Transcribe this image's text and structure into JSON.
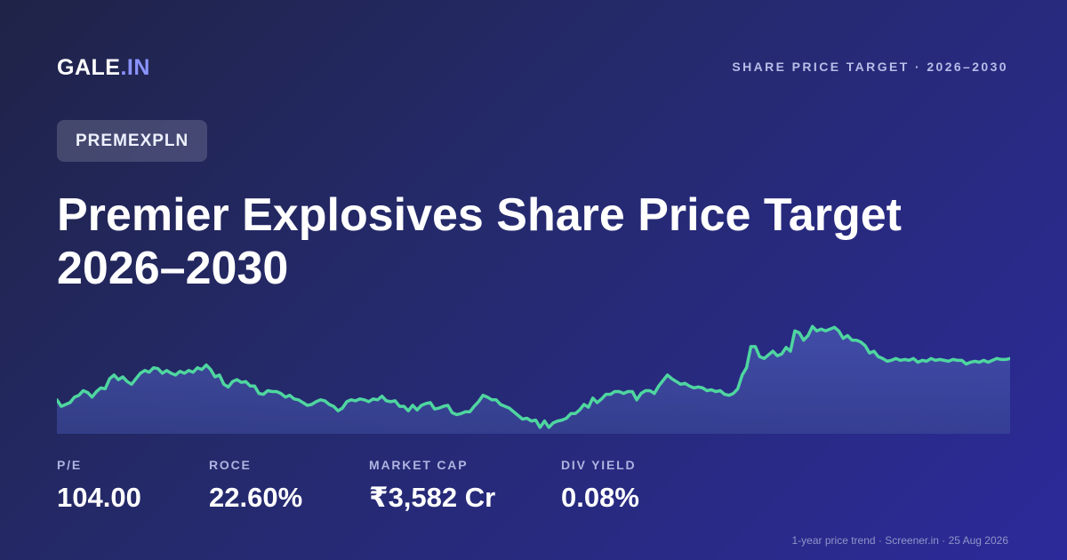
{
  "brand": {
    "name": "GALE",
    "suffix": ".IN"
  },
  "header": {
    "tag": "SHARE PRICE TARGET · 2026–2030"
  },
  "ticker": "PREMEXPLN",
  "title": "Premier Explosives Share Price Target 2026–2030",
  "metrics": [
    {
      "label": "P/E",
      "value": "104.00"
    },
    {
      "label": "ROCE",
      "value": "22.60%"
    },
    {
      "label": "MARKET CAP",
      "value": "₹3,582 Cr"
    },
    {
      "label": "DIV YIELD",
      "value": "0.08%"
    }
  ],
  "footer": {
    "note": "1-year price trend · Screener.in · 25 Aug 2026"
  },
  "colors": {
    "accent": "#8b93ff",
    "line": "#4fd6a0",
    "area": "#3f4aa0"
  },
  "chart_data": {
    "type": "area",
    "values": [
      0.35,
      0.28,
      0.3,
      0.32,
      0.38,
      0.4,
      0.45,
      0.43,
      0.38,
      0.44,
      0.48,
      0.47,
      0.58,
      0.62,
      0.57,
      0.6,
      0.55,
      0.52,
      0.58,
      0.64,
      0.67,
      0.65,
      0.7,
      0.69,
      0.64,
      0.67,
      0.64,
      0.62,
      0.66,
      0.64,
      0.67,
      0.65,
      0.7,
      0.68,
      0.73,
      0.68,
      0.6,
      0.62,
      0.52,
      0.49,
      0.55,
      0.57,
      0.54,
      0.55,
      0.5,
      0.5,
      0.42,
      0.41,
      0.45,
      0.44,
      0.44,
      0.42,
      0.38,
      0.4,
      0.36,
      0.35,
      0.32,
      0.29,
      0.3,
      0.33,
      0.35,
      0.34,
      0.3,
      0.28,
      0.23,
      0.26,
      0.33,
      0.35,
      0.34,
      0.36,
      0.35,
      0.33,
      0.36,
      0.35,
      0.39,
      0.34,
      0.33,
      0.34,
      0.28,
      0.28,
      0.23,
      0.29,
      0.24,
      0.29,
      0.31,
      0.32,
      0.25,
      0.26,
      0.28,
      0.29,
      0.21,
      0.19,
      0.2,
      0.22,
      0.22,
      0.28,
      0.33,
      0.4,
      0.38,
      0.35,
      0.35,
      0.3,
      0.28,
      0.26,
      0.22,
      0.18,
      0.14,
      0.15,
      0.12,
      0.13,
      0.05,
      0.12,
      0.05,
      0.1,
      0.12,
      0.13,
      0.15,
      0.2,
      0.2,
      0.24,
      0.3,
      0.27,
      0.37,
      0.32,
      0.36,
      0.41,
      0.41,
      0.44,
      0.44,
      0.42,
      0.44,
      0.44,
      0.35,
      0.42,
      0.45,
      0.45,
      0.42,
      0.5,
      0.56,
      0.62,
      0.58,
      0.55,
      0.52,
      0.53,
      0.5,
      0.48,
      0.49,
      0.48,
      0.45,
      0.46,
      0.44,
      0.45,
      0.41,
      0.4,
      0.42,
      0.47,
      0.62,
      0.7,
      0.93,
      0.93,
      0.82,
      0.8,
      0.84,
      0.88,
      0.83,
      0.85,
      0.92,
      0.88,
      1.1,
      1.08,
      1.0,
      1.05,
      1.15,
      1.1,
      1.12,
      1.1,
      1.12,
      1.14,
      1.1,
      1.02,
      1.05,
      1.0,
      1.0,
      0.98,
      0.94,
      0.86,
      0.88,
      0.82,
      0.8,
      0.77,
      0.78,
      0.8,
      0.78,
      0.79,
      0.78,
      0.8,
      0.76,
      0.78,
      0.77,
      0.8,
      0.78,
      0.79,
      0.78,
      0.77,
      0.79,
      0.78,
      0.78,
      0.74,
      0.76,
      0.77,
      0.76,
      0.78,
      0.76,
      0.78,
      0.8,
      0.79,
      0.79,
      0.8
    ]
  }
}
